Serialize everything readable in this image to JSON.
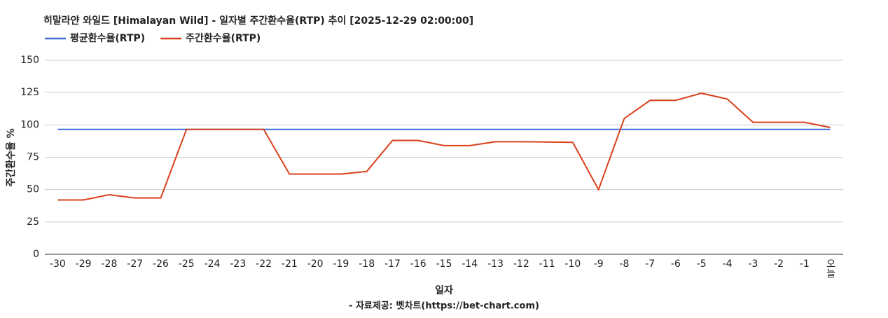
{
  "chart_data": {
    "type": "line",
    "title": "히말라얀 와일드 [Himalayan Wild] - 일자별 주간환수율(RTP) 추이 [2025-12-29 02:00:00]",
    "x_label": "일자",
    "y_label": "주간환수율 %",
    "footer": "- 자료제공: 벳차트(https://bet-chart.com)",
    "categories": [
      "-30",
      "-29",
      "-28",
      "-27",
      "-26",
      "-25",
      "-24",
      "-23",
      "-22",
      "-21",
      "-20",
      "-19",
      "-18",
      "-17",
      "-16",
      "-15",
      "-14",
      "-13",
      "-12",
      "-11",
      "-10",
      "-9",
      "-8",
      "-7",
      "-6",
      "-5",
      "-4",
      "-3",
      "-2",
      "-1",
      "오늘"
    ],
    "series": [
      {
        "name": "평균환수율(RTP)",
        "color": "#3f6fd8",
        "values": [
          96.5,
          96.5,
          96.5,
          96.5,
          96.5,
          96.5,
          96.5,
          96.5,
          96.5,
          96.5,
          96.5,
          96.5,
          96.5,
          96.5,
          96.5,
          96.5,
          96.5,
          96.5,
          96.5,
          96.5,
          96.5,
          96.5,
          96.5,
          96.5,
          96.5,
          96.5,
          96.5,
          96.5,
          96.5,
          96.5,
          96.5
        ]
      },
      {
        "name": "주간환수율(RTP)",
        "color": "#d9401c",
        "values": [
          42,
          42,
          46,
          43.5,
          43.5,
          96.5,
          96.5,
          96.5,
          96.5,
          62,
          62,
          62,
          64,
          88,
          88,
          84,
          84,
          87,
          87,
          86.8,
          86.5,
          50,
          105,
          119,
          119,
          124.5,
          120,
          102,
          102,
          102,
          98
        ]
      }
    ],
    "ylim": [
      0,
      150
    ],
    "yticks": [
      0,
      25,
      50,
      75,
      100,
      125,
      150
    ],
    "grid": true
  }
}
